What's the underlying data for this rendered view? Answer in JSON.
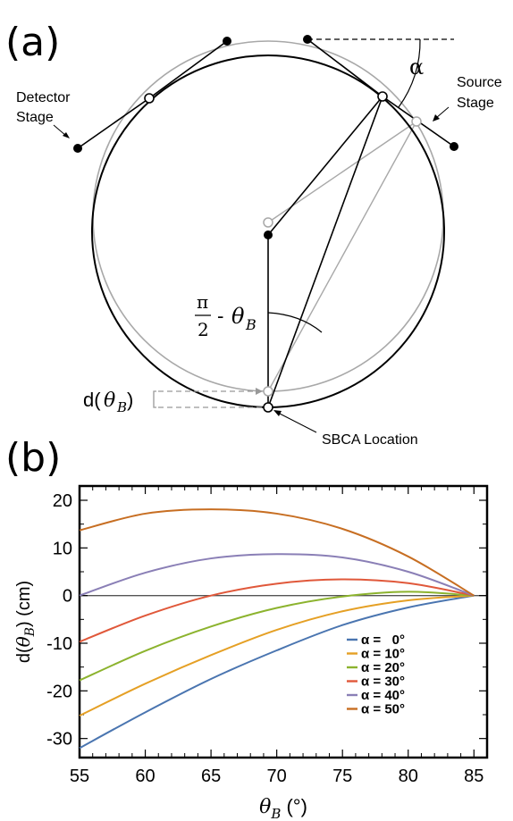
{
  "panel_a": {
    "label": "(a)",
    "detector_stage": [
      "Detector",
      "Stage"
    ],
    "source_stage": [
      "Source",
      "Stage"
    ],
    "alpha": "α",
    "angle_label": {
      "numerator": "π",
      "denominator": "2",
      "minus": "-",
      "theta": "θ",
      "sub": "B"
    },
    "offset_label": {
      "d": "d(",
      "theta": "θ",
      "sub": "B",
      "close": ")"
    },
    "sbca": "SBCA Location"
  },
  "panel_b": {
    "label": "(b)",
    "ylabel": {
      "d": "d(",
      "theta": "θ",
      "sub": "B",
      "rest": ")  (cm)"
    },
    "xlabel": {
      "theta": "θ",
      "sub": "B",
      "rest": " (°)"
    }
  },
  "colors": {
    "black_geometry": "#000000",
    "gray_geometry": "#a8a8a8",
    "frame": "#000000"
  },
  "chart_data": {
    "type": "line",
    "xlim": [
      55,
      86
    ],
    "ylim": [
      -34,
      23
    ],
    "xticks": [
      55,
      60,
      65,
      70,
      75,
      80,
      85
    ],
    "yticks": [
      -30,
      -20,
      -10,
      0,
      10,
      20
    ],
    "legend_position": "bottom-right",
    "series": [
      {
        "name": "α =   0°",
        "color": "#4a75b0",
        "x": [
          55,
          60,
          65,
          70,
          75,
          80,
          85
        ],
        "y": [
          -32,
          -24.5,
          -17.5,
          -11.5,
          -6.2,
          -2.5,
          0
        ]
      },
      {
        "name": "α = 10°",
        "color": "#e5a025",
        "x": [
          55,
          60,
          65,
          70,
          75,
          80,
          85
        ],
        "y": [
          -25.2,
          -18.5,
          -12.5,
          -7.2,
          -3.3,
          -1,
          0
        ]
      },
      {
        "name": "α = 20°",
        "color": "#8cb32e",
        "x": [
          55,
          60,
          65,
          70,
          75,
          80,
          85
        ],
        "y": [
          -17.8,
          -11.6,
          -6.5,
          -2.6,
          -0.2,
          0.8,
          0
        ]
      },
      {
        "name": "α = 30°",
        "color": "#e0583a",
        "x": [
          55,
          60,
          65,
          70,
          75,
          80,
          85
        ],
        "y": [
          -9.7,
          -4.2,
          0,
          2.5,
          3.4,
          2.6,
          0
        ]
      },
      {
        "name": "α = 40°",
        "color": "#8a7fb6",
        "x": [
          55,
          60,
          65,
          70,
          75,
          80,
          85
        ],
        "y": [
          0,
          4.8,
          7.8,
          8.7,
          8,
          5,
          0
        ]
      },
      {
        "name": "α = 50°",
        "color": "#c76e22",
        "x": [
          55,
          60,
          65,
          70,
          75,
          80,
          85
        ],
        "y": [
          13.7,
          17.2,
          18.1,
          17.2,
          14,
          8.2,
          0
        ]
      }
    ]
  }
}
